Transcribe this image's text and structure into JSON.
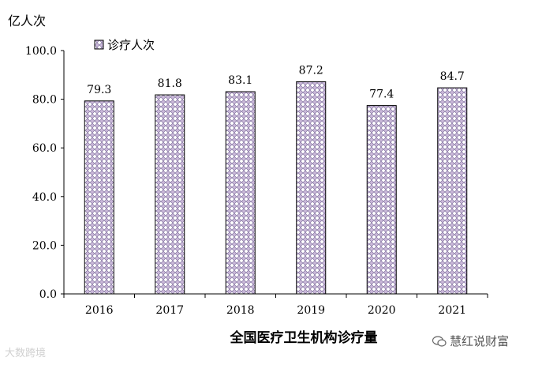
{
  "chart_data": {
    "type": "bar",
    "title": "全国医疗卫生机构诊疗量",
    "ylabel": "亿人次",
    "categories": [
      "2016",
      "2017",
      "2018",
      "2019",
      "2020",
      "2021"
    ],
    "series": [
      {
        "name": "诊疗人次",
        "values": [
          79.3,
          81.8,
          83.1,
          87.2,
          77.4,
          84.7
        ]
      }
    ],
    "value_labels": [
      "79.3",
      "81.8",
      "83.1",
      "87.2",
      "77.4",
      "84.7"
    ],
    "ylim": [
      0,
      100
    ],
    "yticks": [
      "0.0",
      "20.0",
      "40.0",
      "60.0",
      "80.0",
      "100.0"
    ],
    "grid": false,
    "legend_position": "top-left",
    "bar_color": "#c9b8d8",
    "bar_pattern_color": "#6a5a8a"
  },
  "watermarks": {
    "left": "大数跨境",
    "right": "慧红说财富"
  }
}
